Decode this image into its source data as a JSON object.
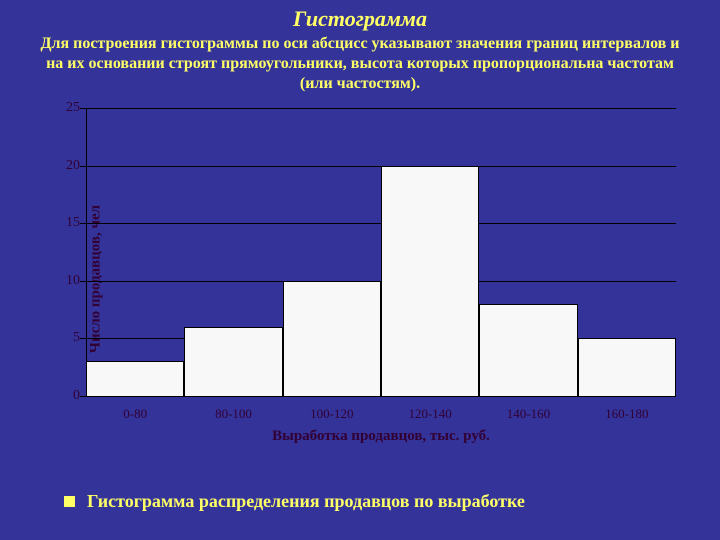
{
  "title": "Гистограмма",
  "description": "Для построения гистограммы по оси абсцисс указывают значения границ интервалов и на их основании строят прямоугольники, высота которых пропорциональна частотам (или частостям).",
  "chart": {
    "type": "histogram",
    "ylabel": "Число продавцов, чел",
    "xlabel": "Выработка продавцов, тыс. руб.",
    "ylim": [
      0,
      25
    ],
    "ytick_step": 5,
    "yticks": [
      0,
      5,
      10,
      15,
      20,
      25
    ],
    "categories": [
      "0-80",
      "80-100",
      "100-120",
      "120-140",
      "140-160",
      "160-180"
    ],
    "values": [
      3,
      6,
      10,
      20,
      8,
      5
    ],
    "bar_color": "#f8f8f8",
    "bar_border": "#000000",
    "background_color": "#333399",
    "grid_color": "#000000",
    "text_color": "#330033",
    "title_fontsize": 22,
    "label_fontsize": 15,
    "tick_fontsize": 14,
    "bar_width": 1.0
  },
  "bullet": {
    "text": "Гистограмма распределения продавцов по выработке",
    "marker_color": "#ffff66",
    "text_color": "#ffff66"
  },
  "page": {
    "background_color": "#333399",
    "accent_color": "#ffff66"
  }
}
